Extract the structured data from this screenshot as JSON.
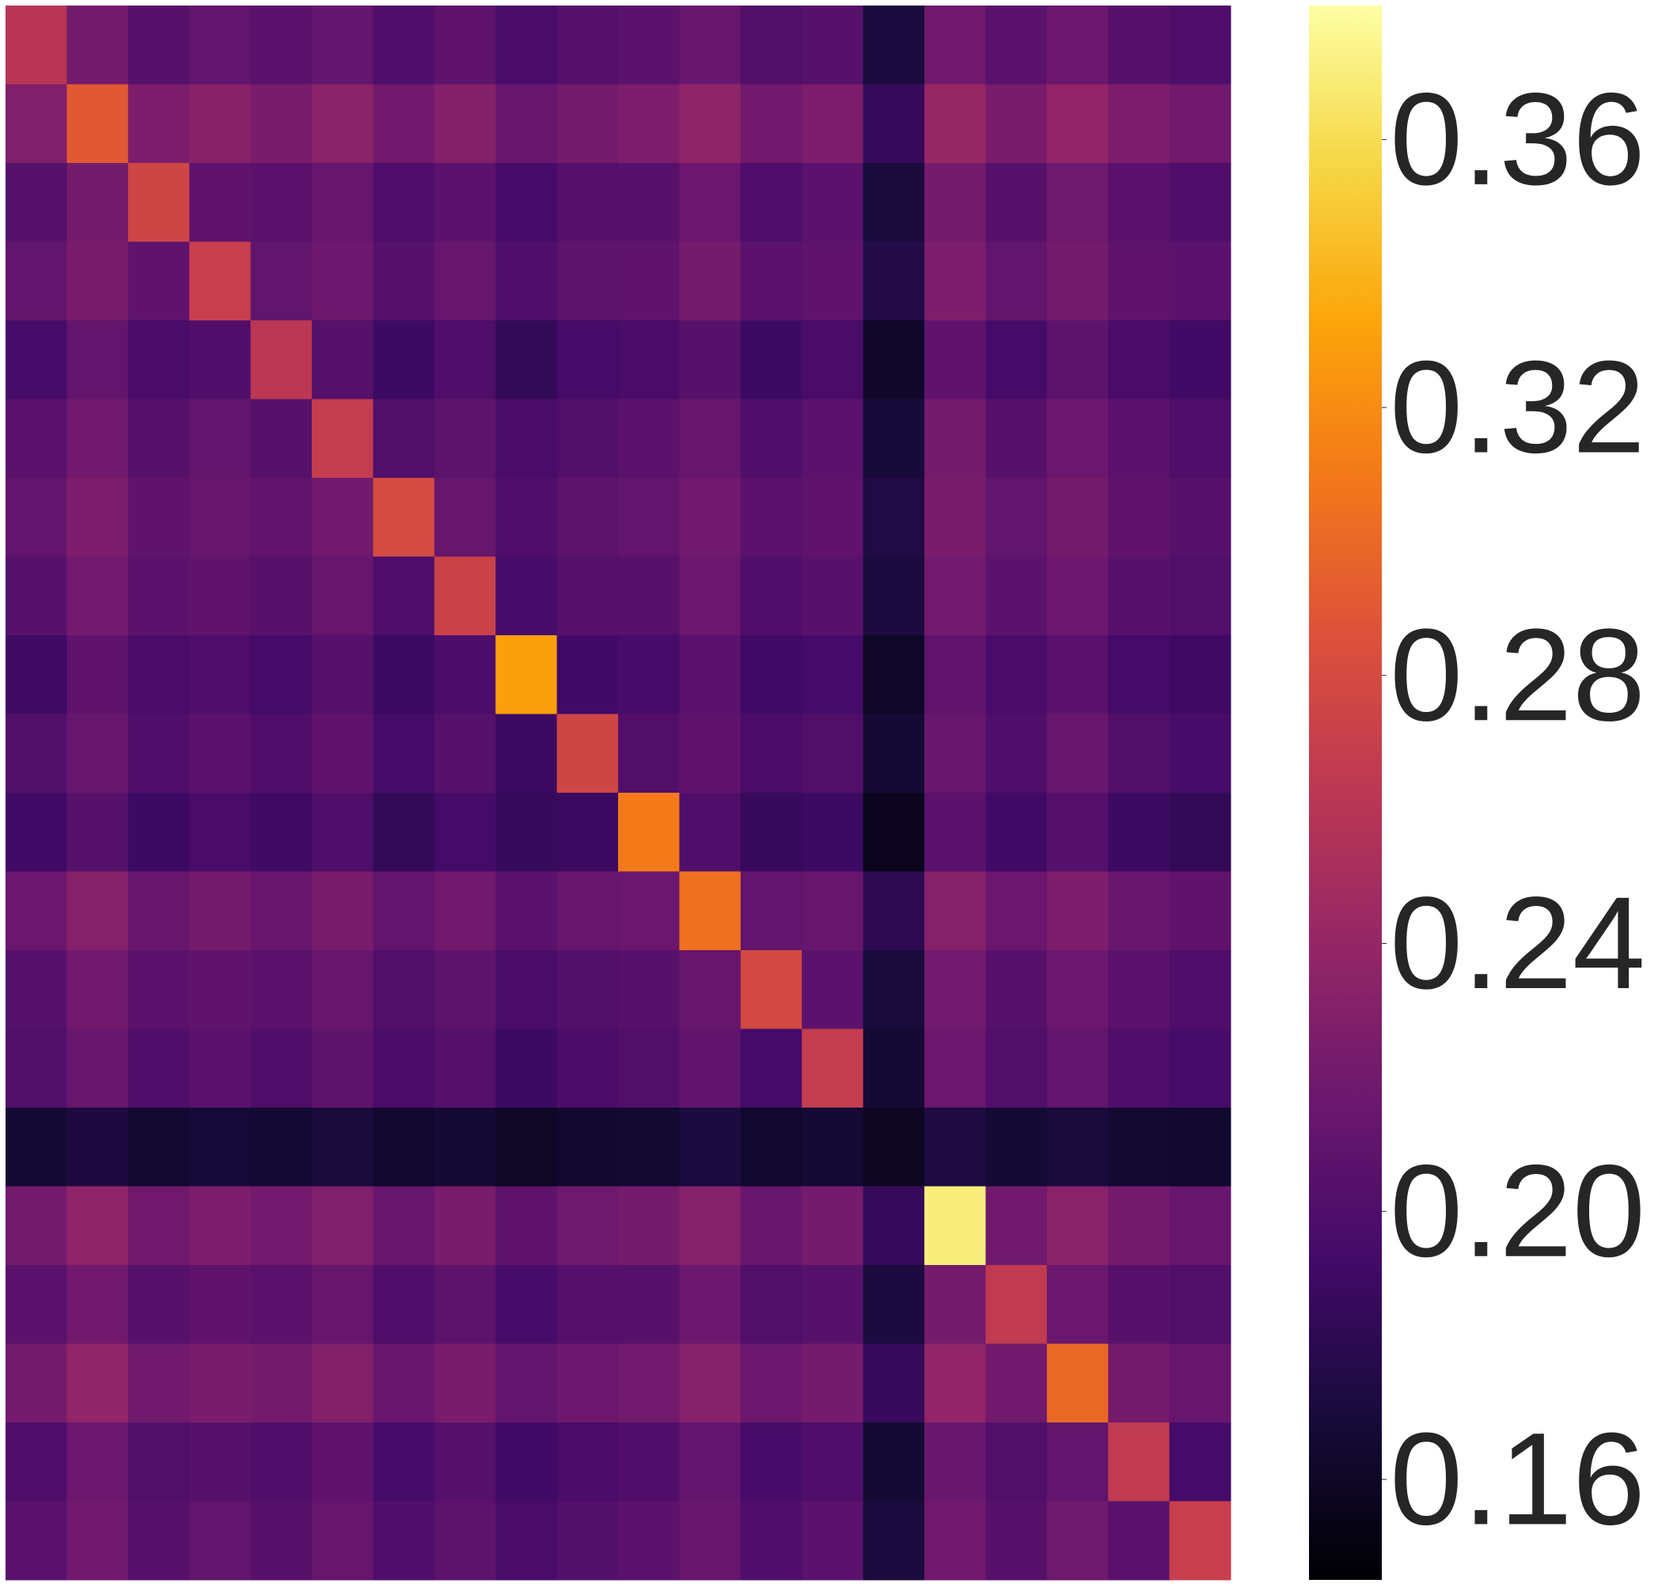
{
  "chart_data": {
    "type": "heatmap",
    "colormap": "inferno",
    "clim": [
      0.145,
      0.38
    ],
    "cticks": [
      0.16,
      {
        "value": 0.2,
        "label": "0.20"
      },
      0.24,
      0.28,
      0.32,
      0.36
    ],
    "z": [
      [
        0.26,
        0.221,
        0.204,
        0.211,
        0.206,
        0.212,
        0.199,
        0.209,
        0.196,
        0.203,
        0.206,
        0.214,
        0.201,
        0.204,
        0.171,
        0.219,
        0.206,
        0.216,
        0.205,
        0.199
      ],
      [
        0.228,
        0.29,
        0.226,
        0.232,
        0.224,
        0.234,
        0.219,
        0.229,
        0.214,
        0.221,
        0.226,
        0.236,
        0.219,
        0.226,
        0.185,
        0.241,
        0.224,
        0.238,
        0.226,
        0.219
      ],
      [
        0.204,
        0.221,
        0.275,
        0.209,
        0.206,
        0.214,
        0.2,
        0.207,
        0.194,
        0.203,
        0.205,
        0.216,
        0.199,
        0.206,
        0.17,
        0.221,
        0.204,
        0.218,
        0.206,
        0.2
      ],
      [
        0.211,
        0.224,
        0.209,
        0.27,
        0.211,
        0.217,
        0.204,
        0.214,
        0.199,
        0.208,
        0.209,
        0.221,
        0.206,
        0.209,
        0.175,
        0.226,
        0.211,
        0.221,
        0.209,
        0.206
      ],
      [
        0.194,
        0.211,
        0.196,
        0.2,
        0.262,
        0.204,
        0.189,
        0.199,
        0.184,
        0.193,
        0.196,
        0.204,
        0.189,
        0.196,
        0.162,
        0.209,
        0.194,
        0.208,
        0.196,
        0.191
      ],
      [
        0.206,
        0.219,
        0.204,
        0.211,
        0.204,
        0.268,
        0.201,
        0.208,
        0.196,
        0.201,
        0.206,
        0.214,
        0.199,
        0.206,
        0.169,
        0.221,
        0.204,
        0.216,
        0.206,
        0.199
      ],
      [
        0.211,
        0.226,
        0.209,
        0.214,
        0.21,
        0.219,
        0.28,
        0.213,
        0.199,
        0.208,
        0.211,
        0.219,
        0.206,
        0.209,
        0.174,
        0.224,
        0.211,
        0.222,
        0.209,
        0.204
      ],
      [
        0.204,
        0.22,
        0.206,
        0.209,
        0.205,
        0.213,
        0.199,
        0.272,
        0.195,
        0.203,
        0.204,
        0.216,
        0.2,
        0.205,
        0.171,
        0.22,
        0.206,
        0.217,
        0.204,
        0.201
      ],
      [
        0.19,
        0.209,
        0.196,
        0.199,
        0.194,
        0.204,
        0.189,
        0.198,
        0.33,
        0.192,
        0.195,
        0.206,
        0.191,
        0.194,
        0.161,
        0.21,
        0.196,
        0.206,
        0.193,
        0.19
      ],
      [
        0.201,
        0.214,
        0.199,
        0.206,
        0.2,
        0.209,
        0.194,
        0.204,
        0.189,
        0.275,
        0.201,
        0.209,
        0.196,
        0.201,
        0.166,
        0.214,
        0.199,
        0.213,
        0.201,
        0.195
      ],
      [
        0.191,
        0.204,
        0.189,
        0.196,
        0.19,
        0.199,
        0.184,
        0.194,
        0.186,
        0.188,
        0.31,
        0.199,
        0.186,
        0.189,
        0.156,
        0.206,
        0.191,
        0.203,
        0.189,
        0.184
      ],
      [
        0.216,
        0.231,
        0.214,
        0.221,
        0.215,
        0.224,
        0.211,
        0.219,
        0.206,
        0.213,
        0.216,
        0.305,
        0.211,
        0.214,
        0.181,
        0.231,
        0.216,
        0.226,
        0.214,
        0.209
      ],
      [
        0.204,
        0.219,
        0.206,
        0.209,
        0.206,
        0.213,
        0.201,
        0.208,
        0.196,
        0.202,
        0.205,
        0.214,
        0.278,
        0.206,
        0.17,
        0.22,
        0.204,
        0.216,
        0.206,
        0.199
      ],
      [
        0.201,
        0.214,
        0.199,
        0.206,
        0.199,
        0.208,
        0.196,
        0.203,
        0.189,
        0.197,
        0.201,
        0.21,
        0.194,
        0.268,
        0.166,
        0.216,
        0.201,
        0.211,
        0.199,
        0.195
      ],
      [
        0.166,
        0.172,
        0.165,
        0.168,
        0.166,
        0.17,
        0.163,
        0.167,
        0.16,
        0.164,
        0.165,
        0.171,
        0.163,
        0.166,
        0.158,
        0.173,
        0.166,
        0.17,
        0.165,
        0.163
      ],
      [
        0.221,
        0.236,
        0.219,
        0.226,
        0.22,
        0.228,
        0.214,
        0.224,
        0.209,
        0.218,
        0.221,
        0.231,
        0.214,
        0.221,
        0.185,
        0.37,
        0.219,
        0.233,
        0.221,
        0.214
      ],
      [
        0.206,
        0.219,
        0.204,
        0.209,
        0.206,
        0.213,
        0.199,
        0.208,
        0.195,
        0.203,
        0.204,
        0.216,
        0.201,
        0.204,
        0.171,
        0.221,
        0.265,
        0.216,
        0.205,
        0.201
      ],
      [
        0.221,
        0.237,
        0.219,
        0.224,
        0.221,
        0.229,
        0.215,
        0.224,
        0.211,
        0.217,
        0.22,
        0.231,
        0.216,
        0.221,
        0.186,
        0.238,
        0.219,
        0.3,
        0.221,
        0.214
      ],
      [
        0.199,
        0.216,
        0.201,
        0.204,
        0.2,
        0.209,
        0.194,
        0.203,
        0.191,
        0.196,
        0.2,
        0.211,
        0.195,
        0.199,
        0.166,
        0.214,
        0.201,
        0.211,
        0.265,
        0.194
      ],
      [
        0.206,
        0.219,
        0.204,
        0.211,
        0.205,
        0.213,
        0.2,
        0.208,
        0.196,
        0.202,
        0.206,
        0.214,
        0.199,
        0.206,
        0.171,
        0.219,
        0.204,
        0.218,
        0.206,
        0.27
      ]
    ]
  }
}
